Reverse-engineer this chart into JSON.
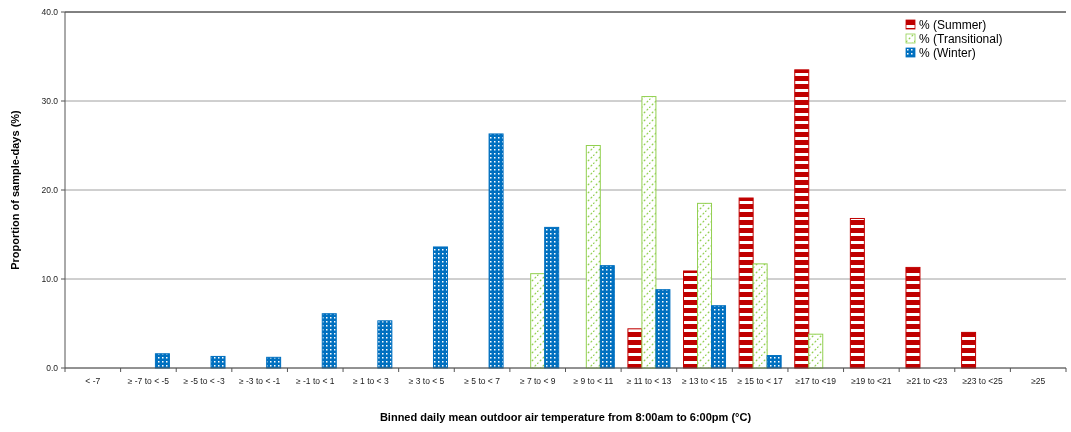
{
  "chart_data": {
    "type": "bar",
    "xlabel": "Binned daily mean outdoor air temperature from 8:00am to 6:00pm (°C)",
    "ylabel": "Proportion of sample-days (%)",
    "categories": [
      "< -7",
      "≥ -7 to < -5",
      "≥ -5 to < -3",
      "≥ -3 to < -1",
      "≥ -1 to < 1",
      "≥ 1 to < 3",
      "≥ 3 to < 5",
      "≥ 5 to < 7",
      "≥ 7 to < 9",
      "≥ 9 to < 11",
      "≥ 11 to < 13",
      "≥ 13 to < 15",
      "≥ 15 to < 17",
      "≥17 to <19",
      "≥19 to <21",
      "≥21 to <23",
      "≥23 to <25",
      "≥25"
    ],
    "series": [
      {
        "name": "% (Summer)",
        "color": "#c00000",
        "values": [
          null,
          null,
          null,
          null,
          null,
          null,
          null,
          null,
          null,
          null,
          4.4,
          10.9,
          19.1,
          33.5,
          16.8,
          11.3,
          4.0,
          null
        ]
      },
      {
        "name": "% (Transitional)",
        "color": "#92d050",
        "values": [
          null,
          null,
          null,
          null,
          null,
          null,
          null,
          null,
          10.6,
          25.0,
          30.5,
          18.5,
          11.7,
          3.8,
          null,
          null,
          null,
          null
        ]
      },
      {
        "name": "% (Winter)",
        "color": "#0070c0",
        "values": [
          null,
          1.6,
          1.3,
          1.2,
          6.1,
          5.3,
          13.6,
          26.3,
          15.8,
          11.5,
          8.8,
          7.0,
          1.4,
          null,
          null,
          null,
          null,
          null
        ]
      }
    ],
    "ylim": [
      0,
      40
    ],
    "yticks": [
      {
        "value": 0,
        "label": "0.0"
      },
      {
        "value": 10,
        "label": "10.0"
      },
      {
        "value": 20,
        "label": "20.0"
      },
      {
        "value": 30,
        "label": "30.0"
      },
      {
        "value": 40,
        "label": "40.0"
      }
    ],
    "grid": "y",
    "legend": "top right"
  }
}
